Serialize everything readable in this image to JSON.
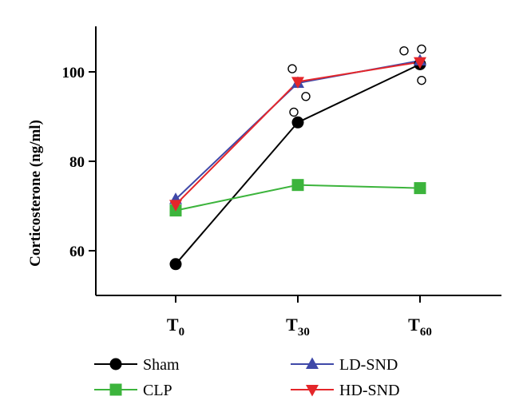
{
  "chart_data": {
    "type": "line",
    "ylabel": "Corticosterone (ng/ml)",
    "ylim": [
      50,
      110
    ],
    "yticks": [
      60,
      80,
      100
    ],
    "categories": [
      {
        "main": "T",
        "sub": "0"
      },
      {
        "main": "T",
        "sub": "30"
      },
      {
        "main": "T",
        "sub": "60"
      }
    ],
    "series": [
      {
        "name": "Sham",
        "color": "#000000",
        "marker": "circle",
        "values": [
          57.0,
          88.7,
          101.7
        ]
      },
      {
        "name": "CLP",
        "color": "#3cb43c",
        "marker": "square",
        "values": [
          69.0,
          74.7,
          74.0
        ]
      },
      {
        "name": "LD-SND",
        "color": "#3f48a8",
        "marker": "triangle-up",
        "values": [
          71.5,
          97.5,
          102.5
        ]
      },
      {
        "name": "HD-SND",
        "color": "#e4262a",
        "marker": "triangle-down",
        "values": [
          70.3,
          97.8,
          102.2
        ]
      }
    ],
    "scatter_points": [
      {
        "x": 1,
        "y": 100.7
      },
      {
        "x": 1,
        "y": 94.5
      },
      {
        "x": 1,
        "y": 91.0
      },
      {
        "x": 2,
        "y": 104.7
      },
      {
        "x": 2,
        "y": 105.1
      },
      {
        "x": 2,
        "y": 98.1
      }
    ],
    "legend_position": "bottom",
    "grid": false
  }
}
